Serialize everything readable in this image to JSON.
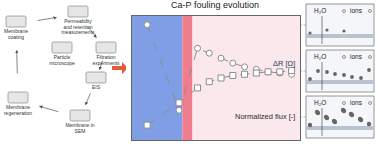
{
  "chart_data": {
    "type": "scatter",
    "title": "Ca-P fouling evolution",
    "xlim": [
      0,
      10
    ],
    "ylim": [
      0,
      1
    ],
    "tick_labels": false,
    "grid": false,
    "regions": [
      {
        "x0": 0,
        "x1": 3.0,
        "color": "#7f9ee6"
      },
      {
        "x0": 3.0,
        "x1": 3.6,
        "color": "#ef7d8e"
      },
      {
        "x0": 3.6,
        "x1": 10,
        "color": "#fbe8ec"
      }
    ],
    "series": [
      {
        "name": "Normalized flux [-]",
        "color": "#8c8c8c",
        "marker": "circle",
        "line_style": "dashed",
        "x": [
          0.9,
          2.8,
          3.9,
          4.6,
          5.3,
          6.0,
          6.7,
          7.4,
          8.1,
          8.8,
          9.5
        ],
        "values": [
          0.93,
          0.24,
          0.74,
          0.7,
          0.66,
          0.62,
          0.59,
          0.57,
          0.55,
          0.54,
          0.53
        ]
      },
      {
        "name": "ΔR [Ω]",
        "color": "#8c8c8c",
        "marker": "square",
        "line_style": "dashed",
        "x": [
          0.9,
          2.8,
          3.9,
          4.6,
          5.3,
          6.0,
          6.7,
          7.4,
          8.1,
          8.8,
          9.5
        ],
        "values": [
          0.12,
          0.3,
          0.42,
          0.47,
          0.5,
          0.52,
          0.53,
          0.54,
          0.55,
          0.55,
          0.56
        ]
      }
    ]
  },
  "workflow": {
    "nodes": [
      "Membrane coating",
      "Permeability and retention measurements",
      "Filtration experiments",
      "Particle microscope",
      "EIS",
      "Membrane regeneration",
      "Membrane in SEM"
    ]
  },
  "panels": [
    {
      "labels": [
        "H₂O",
        "ions"
      ]
    },
    {
      "labels": [
        "H₂O",
        "ions"
      ]
    },
    {
      "labels": [
        "H₂O",
        "ions"
      ]
    }
  ]
}
